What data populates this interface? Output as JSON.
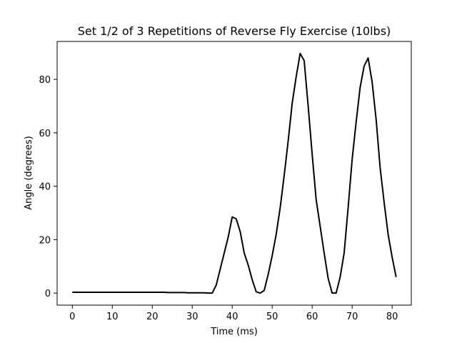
{
  "chart_data": {
    "type": "line",
    "title": "Set 1/2 of 3 Repetitions of Reverse Fly Exercise (10lbs)",
    "xlabel": "Time (ms)",
    "ylabel": "Angle (degrees)",
    "xlim": [
      -3.8,
      84.8
    ],
    "ylim": [
      -4.5,
      94.2
    ],
    "xticks": [
      0,
      10,
      20,
      30,
      40,
      50,
      60,
      70,
      80
    ],
    "yticks": [
      0,
      20,
      40,
      60,
      80
    ],
    "grid": false,
    "legend": "none",
    "line_color": "#000000",
    "series": [
      {
        "x": [
          0,
          1,
          2,
          3,
          4,
          5,
          6,
          7,
          8,
          9,
          10,
          11,
          12,
          13,
          14,
          15,
          16,
          17,
          18,
          19,
          20,
          21,
          22,
          23,
          24,
          25,
          26,
          27,
          28,
          29,
          30,
          31,
          32,
          33,
          34,
          35,
          36,
          37,
          38,
          39,
          40,
          41,
          42,
          43,
          44,
          45,
          46,
          47,
          48,
          49,
          50,
          51,
          52,
          53,
          54,
          55,
          56,
          57,
          58,
          59,
          60,
          61,
          62,
          63,
          64,
          65,
          66,
          67,
          68,
          69,
          70,
          71,
          72,
          73,
          74,
          75,
          76,
          77,
          78,
          79,
          80,
          81
        ],
        "values": [
          0.3,
          0.3,
          0.3,
          0.3,
          0.3,
          0.3,
          0.3,
          0.3,
          0.3,
          0.3,
          0.3,
          0.3,
          0.3,
          0.3,
          0.3,
          0.3,
          0.3,
          0.3,
          0.3,
          0.3,
          0.3,
          0.3,
          0.3,
          0.3,
          0.2,
          0.2,
          0.2,
          0.2,
          0.2,
          0.1,
          0.1,
          0.1,
          0.1,
          0.1,
          0.0,
          0.0,
          3.0,
          9.0,
          15.0,
          21.0,
          28.5,
          27.8,
          23.0,
          15.0,
          10.5,
          5.0,
          0.5,
          0.0,
          1.0,
          7.0,
          14.0,
          22.0,
          32.0,
          44.0,
          57.0,
          71.0,
          81.0,
          89.7,
          87.0,
          70.0,
          52.0,
          35.0,
          25.0,
          15.0,
          5.5,
          0.0,
          0.0,
          6.0,
          15.0,
          32.0,
          50.0,
          64.0,
          77.0,
          85.0,
          88.0,
          79.0,
          65.0,
          47.0,
          34.0,
          22.0,
          13.5,
          6.0
        ]
      }
    ]
  }
}
